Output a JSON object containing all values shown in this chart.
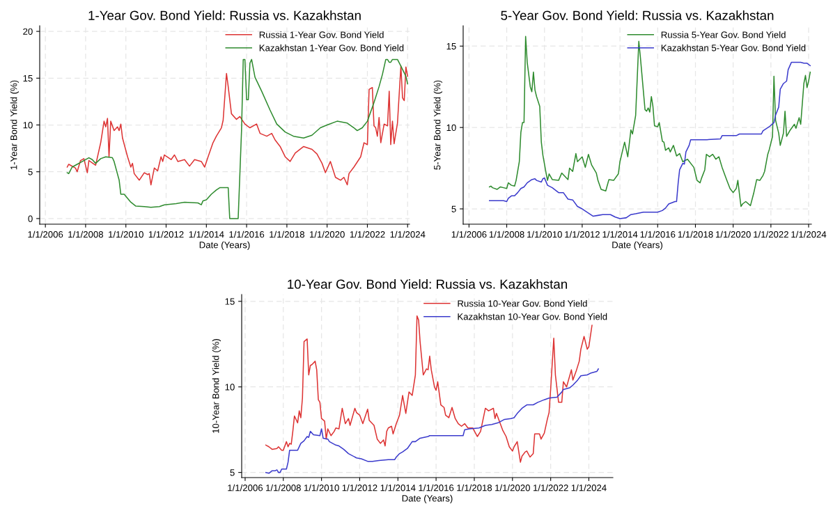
{
  "chart_data": [
    {
      "type": "line",
      "title": "1-Year Gov. Bond Yield: Russia vs. Kazakhstan",
      "xlabel": "Date (Years)",
      "ylabel": "1-Year Bond Yield (%)",
      "grid": true,
      "legend": "top right",
      "xlim": [
        "2005-09-20",
        "2024-02-05"
      ],
      "ylim": [
        -0.6,
        20.6
      ],
      "yticks": [
        0,
        5,
        10,
        15,
        20
      ],
      "xticks": [
        {
          "value": "2006-01-01",
          "label": "1/1/2006"
        },
        {
          "value": "2008-01-01",
          "label": "1/1/2008"
        },
        {
          "value": "2010-01-01",
          "label": "1/1/2010"
        },
        {
          "value": "2012-01-01",
          "label": "1/1/2012"
        },
        {
          "value": "2014-01-01",
          "label": "1/1/2014"
        },
        {
          "value": "2016-01-01",
          "label": "1/1/2016"
        },
        {
          "value": "2018-01-01",
          "label": "1/1/2018"
        },
        {
          "value": "2020-01-01",
          "label": "1/1/2020"
        },
        {
          "value": "2022-01-01",
          "label": "1/1/2022"
        },
        {
          "value": "2024-01-01",
          "label": "1/1/2024"
        }
      ],
      "series": [
        {
          "name": "Russia 1-Year Gov. Bond Yield",
          "color": "#dd3333",
          "x": [
            "2007-02",
            "2007-03",
            "2007-07",
            "2007-08",
            "2007-10",
            "2007-12",
            "2008-02",
            "2008-03",
            "2008-07",
            "2008-10",
            "2008-12",
            "2009-01",
            "2009-02",
            "2009-03",
            "2009-04",
            "2009-06",
            "2009-08",
            "2009-09",
            "2009-10",
            "2009-11",
            "2010-02",
            "2010-04",
            "2010-05",
            "2010-06",
            "2010-09",
            "2010-12",
            "2011-02",
            "2011-03",
            "2011-04",
            "2011-06",
            "2011-08",
            "2011-10",
            "2011-11",
            "2011-12",
            "2012-04",
            "2012-06",
            "2012-08",
            "2012-12",
            "2013-03",
            "2013-06",
            "2013-10",
            "2013-12",
            "2014-02",
            "2014-05",
            "2014-07",
            "2014-10",
            "2014-11",
            "2015-01",
            "2015-02",
            "2015-04",
            "2015-07",
            "2015-09",
            "2015-12",
            "2016-03",
            "2016-07",
            "2016-09",
            "2017-01",
            "2017-04",
            "2017-06",
            "2017-09",
            "2017-12",
            "2018-03",
            "2018-06",
            "2018-11",
            "2019-04",
            "2019-07",
            "2019-10",
            "2019-12",
            "2020-03",
            "2020-06",
            "2020-09",
            "2020-11",
            "2021-01",
            "2021-02",
            "2021-05",
            "2021-09",
            "2021-11",
            "2022-01",
            "2022-02",
            "2022-04",
            "2022-05",
            "2022-06",
            "2022-07",
            "2022-08",
            "2022-09",
            "2022-11",
            "2023-01",
            "2023-02",
            "2023-03",
            "2023-04",
            "2023-05",
            "2023-07",
            "2023-09",
            "2023-10",
            "2023-11",
            "2023-12",
            "2024-01"
          ],
          "values": [
            5.5,
            5.8,
            5.4,
            5.0,
            6.2,
            6.4,
            4.9,
            6.2,
            5.7,
            8.1,
            10.4,
            9.8,
            10.7,
            6.6,
            10.4,
            9.4,
            9.8,
            9.4,
            10.1,
            8.6,
            6.6,
            5.5,
            5.9,
            4.8,
            4.1,
            4.9,
            4.7,
            4.8,
            3.6,
            5.4,
            5.1,
            6.6,
            6.1,
            6.8,
            6.3,
            6.8,
            6.1,
            6.3,
            5.6,
            6.3,
            6.1,
            5.5,
            6.6,
            8.1,
            8.8,
            9.7,
            10.5,
            15.5,
            14.1,
            11.2,
            10.6,
            10.9,
            10.1,
            9.7,
            10.1,
            9.1,
            8.8,
            9.1,
            8.4,
            7.7,
            6.6,
            6.1,
            7.0,
            7.7,
            7.4,
            6.9,
            5.9,
            4.9,
            6.1,
            4.4,
            4.1,
            4.4,
            3.6,
            4.8,
            5.5,
            6.6,
            8.1,
            7.9,
            13.8,
            14.0,
            9.9,
            9.7,
            8.8,
            10.8,
            8.1,
            10.1,
            9.9,
            13.6,
            7.9,
            10.4,
            8.0,
            10.2,
            16.3,
            12.9,
            12.6,
            16.2,
            15.2
          ]
        },
        {
          "name": "Kazakhstan 1-Year Gov. Bond Yield",
          "color": "#2e8b2e",
          "x": [
            "2007-02",
            "2007-03",
            "2007-05",
            "2007-08",
            "2007-12",
            "2008-03",
            "2008-05",
            "2008-07",
            "2008-10",
            "2009-01",
            "2009-05",
            "2009-06",
            "2009-09",
            "2009-10",
            "2009-12",
            "2010-04",
            "2010-07",
            "2010-12",
            "2011-04",
            "2011-09",
            "2011-12",
            "2012-07",
            "2012-12",
            "2013-08",
            "2013-10",
            "2013-11",
            "2014-01",
            "2014-04",
            "2014-07",
            "2014-09",
            "2015-02",
            "2015-03",
            "2015-08",
            "2015-10",
            "2015-11",
            "2015-12",
            "2016-01",
            "2016-02",
            "2016-03",
            "2016-04",
            "2016-06",
            "2016-10",
            "2017-03",
            "2017-07",
            "2017-12",
            "2018-05",
            "2018-11",
            "2019-04",
            "2019-09",
            "2020-01",
            "2020-07",
            "2021-01",
            "2021-05",
            "2021-07",
            "2021-10",
            "2022-01",
            "2022-05",
            "2022-08",
            "2022-10",
            "2022-12",
            "2023-01",
            "2023-02",
            "2023-03",
            "2023-04",
            "2023-07",
            "2023-09",
            "2023-12",
            "2024-01"
          ],
          "values": [
            4.9,
            4.8,
            5.5,
            5.8,
            6.2,
            6.5,
            6.3,
            5.9,
            6.4,
            6.6,
            6.5,
            6.1,
            4.1,
            2.6,
            2.6,
            1.75,
            1.33,
            1.28,
            1.2,
            1.28,
            1.47,
            1.6,
            1.75,
            1.67,
            1.47,
            1.9,
            2.0,
            2.6,
            3.05,
            3.3,
            3.3,
            0,
            0,
            9.4,
            17,
            17,
            12.7,
            12.7,
            16.6,
            17,
            15.1,
            13.6,
            11.6,
            10.1,
            9.25,
            8.8,
            8.6,
            8.9,
            9.7,
            10.0,
            10.4,
            10.2,
            9.7,
            9.4,
            9.7,
            10.4,
            12.4,
            14.1,
            15.4,
            17,
            17,
            16.7,
            16.7,
            17,
            17,
            16.3,
            15.2,
            14.4
          ]
        }
      ]
    },
    {
      "type": "line",
      "title": "5-Year Gov. Bond Yield: Russia vs. Kazakhstan",
      "xlabel": "Date (Years)",
      "ylabel": "5-Year Bond Yield (%)",
      "grid": true,
      "legend": "top right",
      "xlim": [
        "2005-09-10",
        "2024-02-24"
      ],
      "ylim": [
        4.06,
        16.25
      ],
      "yticks": [
        5,
        10,
        15
      ],
      "xticks": [
        {
          "value": "2006-01-01",
          "label": "1/1/2006"
        },
        {
          "value": "2008-01-01",
          "label": "1/1/2008"
        },
        {
          "value": "2010-01-01",
          "label": "1/1/2010"
        },
        {
          "value": "2012-01-01",
          "label": "1/1/2012"
        },
        {
          "value": "2014-01-01",
          "label": "1/1/2014"
        },
        {
          "value": "2016-01-01",
          "label": "1/1/2016"
        },
        {
          "value": "2018-01-01",
          "label": "1/1/2018"
        },
        {
          "value": "2020-01-01",
          "label": "1/1/2020"
        },
        {
          "value": "2022-01-01",
          "label": "1/1/2022"
        },
        {
          "value": "2024-01-01",
          "label": "1/1/2024"
        }
      ],
      "series": [
        {
          "name": "Russia 5-Year Gov. Bond Yield",
          "color": "#2e8b2e",
          "x": [
            "2007-02",
            "2007-03",
            "2007-04",
            "2007-07",
            "2007-09",
            "2007-11",
            "2008-01",
            "2008-02",
            "2008-04",
            "2008-06",
            "2008-07",
            "2008-09",
            "2008-10",
            "2008-11",
            "2008-12",
            "2009-01",
            "2009-02",
            "2009-04",
            "2009-05",
            "2009-06",
            "2009-07",
            "2009-08",
            "2009-10",
            "2009-11",
            "2009-12",
            "2010-02",
            "2010-03",
            "2010-04",
            "2010-06",
            "2010-10",
            "2010-12",
            "2011-04",
            "2011-05",
            "2011-07",
            "2011-09",
            "2011-10",
            "2012-01",
            "2012-03",
            "2012-05",
            "2012-07",
            "2012-10",
            "2012-11",
            "2013-01",
            "2013-04",
            "2013-06",
            "2013-09",
            "2013-12",
            "2014-01",
            "2014-04",
            "2014-06",
            "2014-08",
            "2014-09",
            "2014-11",
            "2015-01",
            "2015-02",
            "2015-05",
            "2015-06",
            "2015-07",
            "2015-08",
            "2015-09",
            "2015-10",
            "2015-11",
            "2016-01",
            "2016-02",
            "2016-04",
            "2016-05",
            "2016-06",
            "2016-08",
            "2016-09",
            "2016-11",
            "2017-01",
            "2017-03",
            "2017-05",
            "2017-08",
            "2017-12",
            "2018-02",
            "2018-04",
            "2018-05",
            "2018-07",
            "2018-08",
            "2018-10",
            "2018-12",
            "2019-02",
            "2019-04",
            "2019-06",
            "2019-09",
            "2019-11",
            "2020-01",
            "2020-03",
            "2020-04",
            "2020-05",
            "2020-06",
            "2020-07",
            "2020-09",
            "2020-12",
            "2021-02",
            "2021-04",
            "2021-06",
            "2021-08",
            "2021-09",
            "2021-11",
            "2021-12",
            "2022-02",
            "2022-03",
            "2022-04",
            "2022-06",
            "2022-07",
            "2022-09",
            "2022-10",
            "2022-11",
            "2023-01",
            "2023-04",
            "2023-05",
            "2023-07",
            "2023-08",
            "2023-10",
            "2023-11",
            "2023-12",
            "2024-01",
            "2024-02"
          ],
          "values": [
            6.35,
            6.4,
            6.3,
            6.2,
            6.35,
            6.3,
            6.25,
            6.6,
            6.45,
            6.4,
            6.75,
            7.9,
            9.7,
            10.3,
            10.3,
            15.6,
            14.0,
            12.5,
            12.2,
            13.4,
            12.3,
            11.9,
            11.3,
            9.1,
            8.3,
            7.2,
            6.75,
            7.15,
            6.8,
            6.75,
            7.2,
            6.8,
            7.5,
            7.3,
            8.4,
            7.9,
            8.2,
            7.55,
            8.35,
            7.7,
            7.2,
            6.75,
            6.2,
            6.1,
            6.8,
            6.75,
            7.15,
            7.9,
            9.1,
            8.2,
            9.85,
            9.6,
            10.75,
            15.3,
            14.3,
            11.1,
            11.0,
            11.2,
            10.95,
            11.9,
            11.3,
            10.1,
            10.05,
            10.3,
            9.15,
            9.1,
            8.6,
            8.75,
            8.5,
            8.9,
            8.25,
            8.4,
            7.9,
            8.05,
            7.55,
            6.75,
            6.6,
            6.9,
            7.4,
            8.35,
            8.2,
            8.35,
            8.05,
            8.2,
            7.55,
            6.75,
            6.25,
            6.0,
            6.25,
            6.75,
            5.95,
            5.15,
            5.3,
            5.45,
            5.2,
            5.95,
            6.8,
            6.75,
            7.05,
            7.3,
            8.35,
            8.65,
            9.45,
            13.15,
            10.45,
            9.65,
            8.9,
            9.65,
            11.0,
            9.45,
            9.8,
            10.2,
            9.95,
            10.6,
            10.2,
            12.7,
            13.2,
            12.45,
            12.85,
            13.4
          ]
        },
        {
          "name": "Kazakhstan 5-Year Gov. Bond Yield",
          "color": "#3a3acc",
          "x": [
            "2007-02",
            "2007-11",
            "2008-01",
            "2008-02",
            "2008-04",
            "2008-06",
            "2008-08",
            "2008-10",
            "2008-12",
            "2009-02",
            "2009-05",
            "2009-07",
            "2009-08",
            "2009-11",
            "2009-12",
            "2010-01",
            "2010-03",
            "2010-06",
            "2010-10",
            "2011-01",
            "2011-04",
            "2011-07",
            "2011-10",
            "2012-01",
            "2012-04",
            "2012-08",
            "2012-11",
            "2013-02",
            "2013-07",
            "2013-10",
            "2014-01",
            "2014-05",
            "2014-08",
            "2014-11",
            "2015-04",
            "2015-07",
            "2016-01",
            "2016-04",
            "2016-06",
            "2016-08",
            "2016-12",
            "2017-01",
            "2017-02",
            "2017-03",
            "2017-05",
            "2017-06",
            "2017-07",
            "2017-09",
            "2017-10",
            "2017-12",
            "2018-08",
            "2019-05",
            "2019-06",
            "2020-01",
            "2020-03",
            "2020-05",
            "2021-07",
            "2021-08",
            "2021-12",
            "2022-03",
            "2022-04",
            "2022-06",
            "2022-07",
            "2022-09",
            "2022-11",
            "2022-12",
            "2023-02",
            "2023-08",
            "2023-10",
            "2023-12",
            "2024-02"
          ],
          "values": [
            5.5,
            5.5,
            5.45,
            5.65,
            5.8,
            5.8,
            6.0,
            6.25,
            6.35,
            6.6,
            6.8,
            6.85,
            6.75,
            6.65,
            6.85,
            6.9,
            6.45,
            6.3,
            6.0,
            6.0,
            5.6,
            5.55,
            5.15,
            5.0,
            4.8,
            4.55,
            4.6,
            4.65,
            4.65,
            4.5,
            4.4,
            4.45,
            4.65,
            4.7,
            4.8,
            4.8,
            4.8,
            4.9,
            5.05,
            5.3,
            5.45,
            5.45,
            6.6,
            7.4,
            7.8,
            7.75,
            8.5,
            8.9,
            9.25,
            9.25,
            9.25,
            9.3,
            9.5,
            9.5,
            9.5,
            9.6,
            9.6,
            9.8,
            10.05,
            10.3,
            10.75,
            11.25,
            12.35,
            12.7,
            12.85,
            13.55,
            14.0,
            14.0,
            13.95,
            13.95,
            13.8
          ]
        }
      ]
    },
    {
      "type": "line",
      "title": "10-Year Gov. Bond Yield: Russia vs. Kazakhstan",
      "xlabel": "Date (Years)",
      "ylabel": "10-Year Bond Yield (%)",
      "grid": true,
      "legend": "top right",
      "xlim": [
        "2005-10-27",
        "2025-04-05"
      ],
      "ylim": [
        4.7,
        15.4
      ],
      "yticks": [
        5,
        10,
        15
      ],
      "xticks": [
        {
          "value": "2006-01-01",
          "label": "1/1/2006"
        },
        {
          "value": "2008-01-01",
          "label": "1/1/2008"
        },
        {
          "value": "2010-01-01",
          "label": "1/1/2010"
        },
        {
          "value": "2012-01-01",
          "label": "1/1/2012"
        },
        {
          "value": "2014-01-01",
          "label": "1/1/2014"
        },
        {
          "value": "2016-01-01",
          "label": "1/1/2016"
        },
        {
          "value": "2018-01-01",
          "label": "1/1/2018"
        },
        {
          "value": "2020-01-01",
          "label": "1/1/2020"
        },
        {
          "value": "2022-01-01",
          "label": "1/1/2022"
        },
        {
          "value": "2024-01-01",
          "label": "1/1/2024"
        }
      ],
      "series": [
        {
          "name": "Russia 10-Year Gov. Bond Yield",
          "color": "#dd3333",
          "x": [
            "2007-02",
            "2007-04",
            "2007-06",
            "2007-09",
            "2007-10",
            "2007-12",
            "2008-01",
            "2008-03",
            "2008-04",
            "2008-05",
            "2008-06",
            "2008-07",
            "2008-08",
            "2008-10",
            "2008-11",
            "2008-12",
            "2009-01",
            "2009-02",
            "2009-04",
            "2009-05",
            "2009-06",
            "2009-07",
            "2009-09",
            "2009-10",
            "2009-11",
            "2009-12",
            "2010-01",
            "2010-03",
            "2010-04",
            "2010-05",
            "2010-07",
            "2010-09",
            "2010-10",
            "2010-12",
            "2011-02",
            "2011-04",
            "2011-06",
            "2011-07",
            "2011-10",
            "2011-11",
            "2012-01",
            "2012-03",
            "2012-06",
            "2012-07",
            "2012-10",
            "2012-12",
            "2013-02",
            "2013-04",
            "2013-05",
            "2013-06",
            "2013-07",
            "2013-09",
            "2013-10",
            "2013-12",
            "2014-02",
            "2014-04",
            "2014-06",
            "2014-08",
            "2014-10",
            "2014-12",
            "2015-01",
            "2015-02",
            "2015-03",
            "2015-05",
            "2015-07",
            "2015-08",
            "2015-09",
            "2015-10",
            "2015-12",
            "2016-01",
            "2016-02",
            "2016-04",
            "2016-06",
            "2016-07",
            "2016-09",
            "2016-11",
            "2017-01",
            "2017-03",
            "2017-05",
            "2017-07",
            "2017-09",
            "2017-12",
            "2018-03",
            "2018-05",
            "2018-08",
            "2018-10",
            "2019-01",
            "2019-02",
            "2019-03",
            "2019-07",
            "2019-09",
            "2019-11",
            "2020-01",
            "2020-02",
            "2020-04",
            "2020-06",
            "2020-07",
            "2020-09",
            "2020-10",
            "2020-12",
            "2021-02",
            "2021-03",
            "2021-06",
            "2021-07",
            "2021-09",
            "2021-11",
            "2021-12",
            "2022-01",
            "2022-03",
            "2022-04",
            "2022-06",
            "2022-08",
            "2022-09",
            "2022-11",
            "2023-02",
            "2023-03",
            "2023-05",
            "2023-07",
            "2023-08",
            "2023-10",
            "2023-12",
            "2024-01",
            "2024-03"
          ],
          "values": [
            6.6,
            6.5,
            6.35,
            6.4,
            6.5,
            6.3,
            6.3,
            6.8,
            6.5,
            6.7,
            6.65,
            7.4,
            8.3,
            7.9,
            8.6,
            8.2,
            9.35,
            12.65,
            12.8,
            10.7,
            11.25,
            11.3,
            11.5,
            11.0,
            9.25,
            9.1,
            8.15,
            8.0,
            6.95,
            7.55,
            7.15,
            7.4,
            7.6,
            7.55,
            8.75,
            7.85,
            8.15,
            7.75,
            8.75,
            8.5,
            8.35,
            7.85,
            8.7,
            8.05,
            7.75,
            6.95,
            6.7,
            6.9,
            6.55,
            7.4,
            7.6,
            7.7,
            7.25,
            7.85,
            8.35,
            9.5,
            8.45,
            9.7,
            9.5,
            10.7,
            14.15,
            13.9,
            12.65,
            10.7,
            11.05,
            11.0,
            11.8,
            11.0,
            10.0,
            9.8,
            10.3,
            8.95,
            8.8,
            8.35,
            8.2,
            8.8,
            8.15,
            7.85,
            7.7,
            7.85,
            7.6,
            7.6,
            7.1,
            7.4,
            8.75,
            8.6,
            8.75,
            8.15,
            8.45,
            7.45,
            7.1,
            6.5,
            6.25,
            6.5,
            6.8,
            5.6,
            5.95,
            6.2,
            6.25,
            5.9,
            6.1,
            7.25,
            7.25,
            6.95,
            7.3,
            8.15,
            8.5,
            9.9,
            12.85,
            10.7,
            9.1,
            9.1,
            10.3,
            10.0,
            11.0,
            10.4,
            10.9,
            11.5,
            12.2,
            12.95,
            12.2,
            12.35,
            13.6
          ]
        },
        {
          "name": "Kazakhstan 10-Year Gov. Bond Yield",
          "color": "#3a3acc",
          "x": [
            "2007-02",
            "2007-04",
            "2007-06",
            "2007-08",
            "2007-09",
            "2007-10",
            "2007-11",
            "2007-12",
            "2008-03",
            "2008-04",
            "2008-05",
            "2008-10",
            "2008-12",
            "2009-02",
            "2009-04",
            "2009-05",
            "2009-06",
            "2009-08",
            "2009-12",
            "2010-01",
            "2010-02",
            "2010-05",
            "2010-06",
            "2010-10",
            "2010-12",
            "2011-03",
            "2011-06",
            "2011-11",
            "2012-02",
            "2012-06",
            "2012-09",
            "2013-01",
            "2013-07",
            "2013-11",
            "2013-12",
            "2014-02",
            "2014-04",
            "2014-07",
            "2014-10",
            "2014-12",
            "2015-03",
            "2015-08",
            "2015-09",
            "2016-05",
            "2017-06",
            "2017-07",
            "2017-10",
            "2018-04",
            "2018-08",
            "2018-12",
            "2019-04",
            "2019-08",
            "2019-12",
            "2020-02",
            "2020-04",
            "2020-07",
            "2020-10",
            "2021-02",
            "2021-05",
            "2021-09",
            "2021-12",
            "2022-05",
            "2022-08",
            "2022-09",
            "2023-01",
            "2023-03",
            "2023-06",
            "2023-08",
            "2023-12",
            "2024-02",
            "2024-06",
            "2024-07"
          ],
          "values": [
            5.0,
            4.95,
            5.1,
            5.1,
            5.15,
            5.0,
            5.0,
            5.2,
            5.2,
            5.6,
            6.3,
            6.3,
            6.7,
            6.85,
            7.1,
            7.05,
            7.4,
            7.2,
            7.15,
            7.55,
            7.0,
            6.95,
            6.8,
            6.6,
            6.55,
            6.35,
            6.1,
            5.85,
            5.8,
            5.65,
            5.65,
            5.7,
            5.75,
            5.75,
            5.9,
            6.1,
            6.2,
            6.4,
            6.8,
            6.8,
            7.0,
            7.1,
            7.15,
            7.15,
            7.15,
            7.5,
            7.55,
            7.6,
            7.75,
            7.8,
            7.9,
            8.1,
            8.15,
            8.2,
            8.45,
            8.75,
            8.95,
            8.95,
            9.1,
            9.25,
            9.35,
            9.4,
            9.7,
            9.85,
            9.95,
            10.1,
            10.4,
            10.65,
            10.7,
            10.8,
            10.9,
            11.05
          ]
        }
      ]
    }
  ]
}
